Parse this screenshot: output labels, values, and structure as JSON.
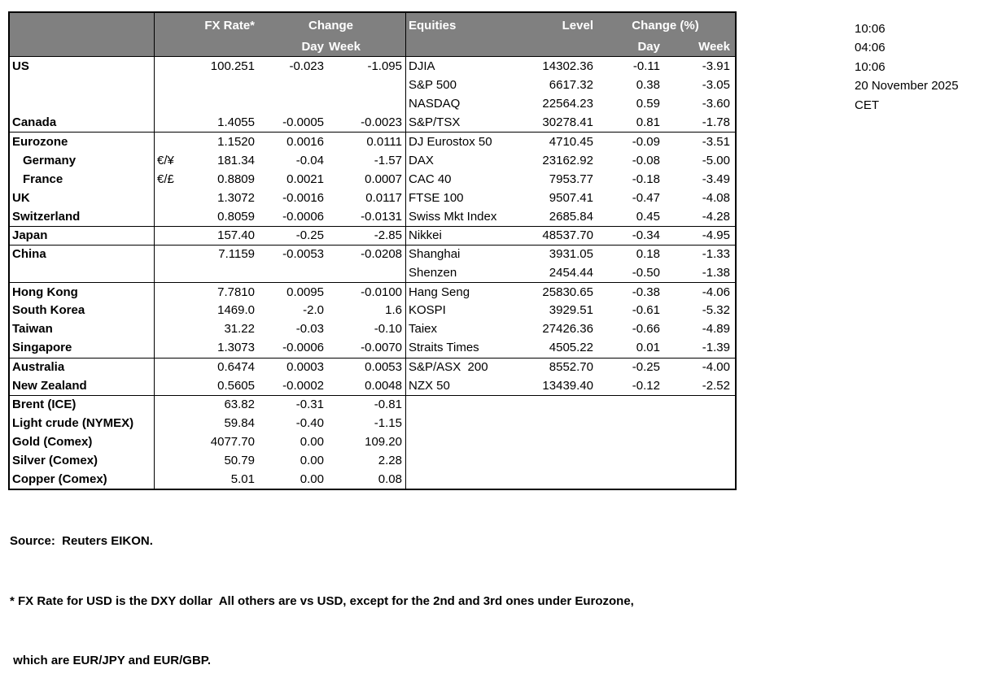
{
  "colors": {
    "header_bg": "#808080",
    "header_text": "#ffffff",
    "border": "#000000"
  },
  "header": {
    "fx_rate": "FX Rate*",
    "change": "Change",
    "day": "Day",
    "week": "Week",
    "equities": "Equities",
    "level": "Level",
    "change_pct": "Change (%)",
    "day2": "Day",
    "week2": "Week"
  },
  "rows": [
    {
      "label": "US",
      "pair": "",
      "rate": "100.251",
      "day": "-0.023",
      "week": "-1.095",
      "eq": "DJIA",
      "level": "14302.36",
      "eday": "-0.11",
      "eweek": "-3.91"
    },
    {
      "label": "",
      "pair": "",
      "rate": "",
      "day": "",
      "week": "",
      "eq": "S&P 500",
      "level": "6617.32",
      "eday": "0.38",
      "eweek": "-3.05"
    },
    {
      "label": "",
      "pair": "",
      "rate": "",
      "day": "",
      "week": "",
      "eq": "NASDAQ",
      "level": "22564.23",
      "eday": "0.59",
      "eweek": "-3.60"
    },
    {
      "label": "Canada",
      "pair": "",
      "rate": "1.4055",
      "day": "-0.0005",
      "week": "-0.0023",
      "eq": "S&P/TSX",
      "level": "30278.41",
      "eday": "0.81",
      "eweek": "-1.78"
    },
    {
      "label": "Eurozone",
      "pair": "",
      "rate": "1.1520",
      "day": "0.0016",
      "week": "0.0111",
      "eq": "DJ Eurostox 50",
      "level": "4710.45",
      "eday": "-0.09",
      "eweek": "-3.51"
    },
    {
      "label": "Germany",
      "pair": "€/¥",
      "rate": "181.34",
      "day": "-0.04",
      "week": "-1.57",
      "eq": "DAX",
      "level": "23162.92",
      "eday": "-0.08",
      "eweek": "-5.00"
    },
    {
      "label": "France",
      "pair": "€/£",
      "rate": "0.8809",
      "day": "0.0021",
      "week": "0.0007",
      "eq": "CAC 40",
      "level": "7953.77",
      "eday": "-0.18",
      "eweek": "-3.49"
    },
    {
      "label": "UK",
      "pair": "",
      "rate": "1.3072",
      "day": "-0.0016",
      "week": "0.0117",
      "eq": "FTSE 100",
      "level": "9507.41",
      "eday": "-0.47",
      "eweek": "-4.08"
    },
    {
      "label": "Switzerland",
      "pair": "",
      "rate": "0.8059",
      "day": "-0.0006",
      "week": "-0.0131",
      "eq": "Swiss Mkt Index",
      "level": "2685.84",
      "eday": "0.45",
      "eweek": "-4.28"
    },
    {
      "label": "Japan",
      "pair": "",
      "rate": "157.40",
      "day": "-0.25",
      "week": "-2.85",
      "eq": "Nikkei",
      "level": "48537.70",
      "eday": "-0.34",
      "eweek": "-4.95"
    },
    {
      "label": "China",
      "pair": "",
      "rate": "7.1159",
      "day": "-0.0053",
      "week": "-0.0208",
      "eq": "Shanghai",
      "level": "3931.05",
      "eday": "0.18",
      "eweek": "-1.33"
    },
    {
      "label": "",
      "pair": "",
      "rate": "",
      "day": "",
      "week": "",
      "eq": "Shenzen",
      "level": "2454.44",
      "eday": "-0.50",
      "eweek": "-1.38"
    },
    {
      "label": "Hong Kong",
      "pair": "",
      "rate": "7.7810",
      "day": "0.0095",
      "week": "-0.0100",
      "eq": "Hang Seng",
      "level": "25830.65",
      "eday": "-0.38",
      "eweek": "-4.06"
    },
    {
      "label": "South Korea",
      "pair": "",
      "rate": "1469.0",
      "day": "-2.0",
      "week": "1.6",
      "eq": "KOSPI",
      "level": "3929.51",
      "eday": "-0.61",
      "eweek": "-5.32"
    },
    {
      "label": "Taiwan",
      "pair": "",
      "rate": "31.22",
      "day": "-0.03",
      "week": "-0.10",
      "eq": "Taiex",
      "level": "27426.36",
      "eday": "-0.66",
      "eweek": "-4.89"
    },
    {
      "label": "Singapore",
      "pair": "",
      "rate": "1.3073",
      "day": "-0.0006",
      "week": "-0.0070",
      "eq": "Straits Times",
      "level": "4505.22",
      "eday": "0.01",
      "eweek": "-1.39"
    },
    {
      "label": "Australia",
      "pair": "",
      "rate": "0.6474",
      "day": "0.0003",
      "week": "0.0053",
      "eq": "S&P/ASX  200",
      "level": "8552.70",
      "eday": "-0.25",
      "eweek": "-4.00"
    },
    {
      "label": "New Zealand",
      "pair": "",
      "rate": "0.5605",
      "day": "-0.0002",
      "week": "0.0048",
      "eq": "NZX 50",
      "level": "13439.40",
      "eday": "-0.12",
      "eweek": "-2.52"
    },
    {
      "label": "Brent (ICE)",
      "pair": "",
      "rate": "63.82",
      "day": "-0.31",
      "week": "-0.81",
      "eq": "",
      "level": "",
      "eday": "",
      "eweek": ""
    },
    {
      "label": "Light crude (NYMEX)",
      "pair": "",
      "rate": "59.84",
      "day": "-0.40",
      "week": "-1.15",
      "eq": "",
      "level": "",
      "eday": "",
      "eweek": ""
    },
    {
      "label": "Gold (Comex)",
      "pair": "",
      "rate": "4077.70",
      "day": "0.00",
      "week": "109.20",
      "eq": "",
      "level": "",
      "eday": "",
      "eweek": ""
    },
    {
      "label": "Silver (Comex)",
      "pair": "",
      "rate": "50.79",
      "day": "0.00",
      "week": "2.28",
      "eq": "",
      "level": "",
      "eday": "",
      "eweek": ""
    },
    {
      "label": "Copper (Comex)",
      "pair": "",
      "rate": "5.01",
      "day": "0.00",
      "week": "0.08",
      "eq": "",
      "level": "",
      "eday": "",
      "eweek": ""
    }
  ],
  "times": [
    "10:06",
    "04:06",
    "10:06",
    "20 November 2025",
    "CET"
  ],
  "footer": {
    "source": "Source:  Reuters EIKON.",
    "note1": "* FX Rate for USD is the DXY dollar  All others are vs USD, except for the 2nd and 3rd ones under Eurozone,",
    "note2": " which are EUR/JPY and EUR/GBP."
  }
}
